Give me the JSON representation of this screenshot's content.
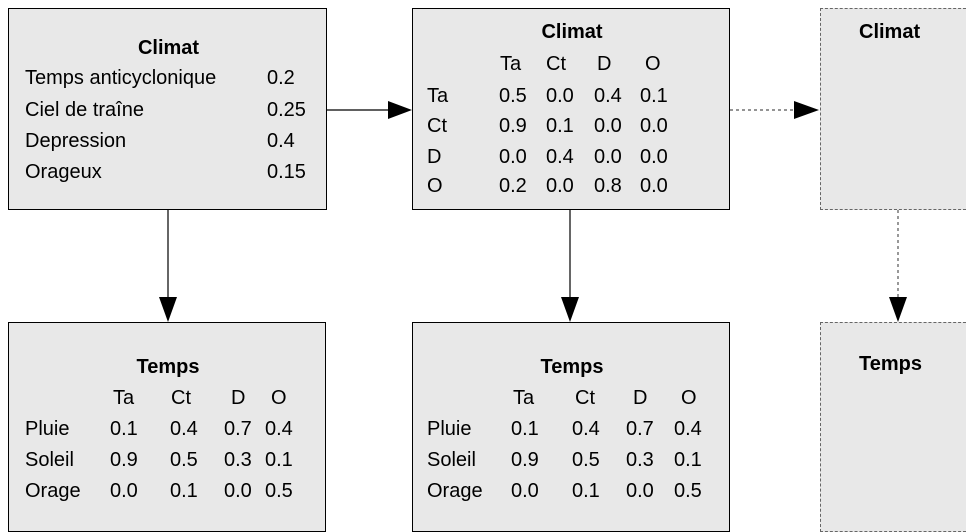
{
  "prior": {
    "title": "Climat",
    "rows": [
      {
        "label": "Temps anticyclonique",
        "value": "0.2"
      },
      {
        "label": "Ciel de traîne",
        "value": "0.25"
      },
      {
        "label": "Depression",
        "value": "0.4"
      },
      {
        "label": "Orageux",
        "value": "0.15"
      }
    ]
  },
  "transition": {
    "title": "Climat",
    "cols": [
      "Ta",
      "Ct",
      "D",
      "O"
    ],
    "rows": [
      {
        "label": "Ta",
        "values": [
          "0.5",
          "0.0",
          "0.4",
          "0.1"
        ]
      },
      {
        "label": "Ct",
        "values": [
          "0.9",
          "0.1",
          "0.0",
          "0.0"
        ]
      },
      {
        "label": "D",
        "values": [
          "0.0",
          "0.4",
          "0.0",
          "0.0"
        ]
      },
      {
        "label": "O",
        "values": [
          "0.2",
          "0.0",
          "0.8",
          "0.0"
        ]
      }
    ]
  },
  "emission1": {
    "title": "Temps",
    "cols": [
      "Ta",
      "Ct",
      "D",
      "O"
    ],
    "rows": [
      {
        "label": "Pluie",
        "values": [
          "0.1",
          "0.4",
          "0.7",
          "0.4"
        ]
      },
      {
        "label": "Soleil",
        "values": [
          "0.9",
          "0.5",
          "0.3",
          "0.1"
        ]
      },
      {
        "label": "Orage",
        "values": [
          "0.0",
          "0.1",
          "0.0",
          "0.5"
        ]
      }
    ]
  },
  "emission2": {
    "title": "Temps",
    "cols": [
      "Ta",
      "Ct",
      "D",
      "O"
    ],
    "rows": [
      {
        "label": "Pluie",
        "values": [
          "0.1",
          "0.4",
          "0.7",
          "0.4"
        ]
      },
      {
        "label": "Soleil",
        "values": [
          "0.9",
          "0.5",
          "0.3",
          "0.1"
        ]
      },
      {
        "label": "Orage",
        "values": [
          "0.0",
          "0.1",
          "0.0",
          "0.5"
        ]
      }
    ]
  },
  "next_state": {
    "title": "Climat"
  },
  "next_obs": {
    "title": "Temps"
  }
}
